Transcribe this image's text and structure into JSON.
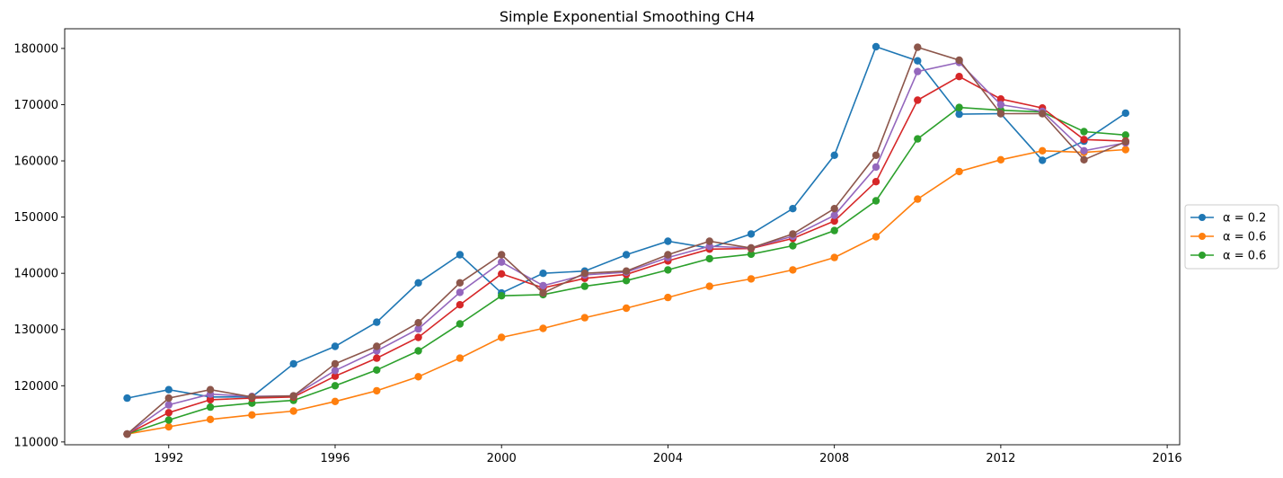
{
  "chart_data": {
    "type": "line",
    "title": "Simple Exponential Smoothing CH4",
    "xlabel": "",
    "ylabel": "",
    "xlim": [
      1989.5,
      2016.3
    ],
    "ylim": [
      109500,
      183500
    ],
    "xticks": [
      1992,
      1996,
      2000,
      2004,
      2008,
      2012,
      2016
    ],
    "yticks": [
      110000,
      120000,
      130000,
      140000,
      150000,
      160000,
      170000,
      180000
    ],
    "grid": false,
    "legend_position": "right",
    "x": [
      1991,
      1992,
      1993,
      1994,
      1995,
      1996,
      1997,
      1998,
      1999,
      2000,
      2001,
      2002,
      2003,
      2004,
      2005,
      2006,
      2007,
      2008,
      2009,
      2010,
      2011,
      2012,
      2013,
      2014,
      2015
    ],
    "series": [
      {
        "name": "α = 0.2",
        "legend": true,
        "color": "#1f77b4",
        "values": [
          117800,
          119300,
          118000,
          118000,
          123900,
          127000,
          131300,
          138300,
          143300,
          136500,
          140000,
          140400,
          143300,
          145700,
          144500,
          147000,
          151500,
          161000,
          180300,
          177800,
          168300,
          168400,
          160100,
          163500,
          168500
        ]
      },
      {
        "legend": true,
        "color": "#ff7f0e",
        "values": [
          111400,
          112700,
          114000,
          114800,
          115500,
          117200,
          119100,
          121600,
          124900,
          128600,
          130200,
          132100,
          133800,
          135700,
          137700,
          139000,
          140600,
          142800,
          146500,
          153200,
          158100,
          160200,
          161800,
          161500,
          162000
        ]
      },
      {
        "legend": true,
        "color": "#2ca02c",
        "values": [
          111400,
          113900,
          116200,
          116900,
          117400,
          120000,
          122800,
          126200,
          131000,
          136000,
          136200,
          137700,
          138700,
          140600,
          142600,
          143400,
          144900,
          147600,
          152900,
          163900,
          169500,
          169000,
          168700,
          165200,
          164600
        ]
      },
      {
        "legend": false,
        "color": "#d62728",
        "values": [
          111400,
          115200,
          117500,
          117800,
          118000,
          121700,
          124900,
          128600,
          134400,
          139900,
          137400,
          139100,
          139800,
          142200,
          144300,
          144400,
          146200,
          149300,
          156300,
          170800,
          175000,
          171000,
          169400,
          163800,
          163500
        ]
      },
      {
        "legend": false,
        "color": "#9467bd",
        "values": [
          111400,
          116600,
          118500,
          118100,
          118200,
          122700,
          126200,
          130100,
          136600,
          142000,
          137800,
          139700,
          140200,
          142800,
          144800,
          144500,
          146600,
          150300,
          158900,
          175900,
          177500,
          170000,
          168800,
          161800,
          163200
        ]
      },
      {
        "legend": false,
        "color": "#8c564b",
        "values": [
          111400,
          117800,
          119300,
          118000,
          118200,
          123900,
          127000,
          131200,
          138300,
          143300,
          136500,
          140000,
          140400,
          143300,
          145700,
          144500,
          147000,
          151500,
          161000,
          180200,
          177900,
          168400,
          168400,
          160200,
          163400
        ]
      }
    ],
    "legend_entries": [
      "α = 0.2",
      "α = 0.6",
      "α = 0.6"
    ]
  }
}
